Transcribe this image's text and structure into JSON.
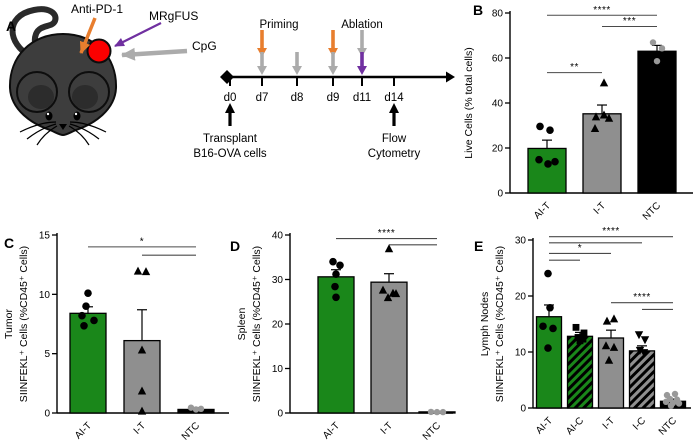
{
  "panels": {
    "a": {
      "label": "A"
    },
    "b": {
      "label": "B"
    },
    "c": {
      "label": "C"
    },
    "d": {
      "label": "D"
    },
    "e": {
      "label": "E"
    }
  },
  "panel_a": {
    "annotations": {
      "anti_pd1": "Anti-PD-1",
      "mrgfus": "MRgFUS",
      "cpg": "CpG"
    },
    "timeline": {
      "days": [
        "d0",
        "d7",
        "d8",
        "d9",
        "d11",
        "d14"
      ],
      "priming_label": "Priming",
      "ablation_label": "Ablation",
      "transplant_line1": "Transplant",
      "transplant_line2": "B16-OVA cells",
      "flow_line1": "Flow",
      "flow_line2": "Cytometry"
    }
  },
  "colors": {
    "bar_green": "#1a871a",
    "bar_gray": "#8f8f8f",
    "bar_black": "#000000",
    "point_black": "#000000",
    "point_gray": "#999999",
    "sig_line": "#4a4a4a",
    "orange_arrow": "#e87e2e",
    "purple_arrow": "#7030a0",
    "gray_arrow": "#ababab",
    "tumor_red": "#fb0000",
    "mouse_body": "#3d3d3d"
  },
  "chart_data": [
    {
      "panel": "B",
      "type": "bar",
      "title": "",
      "ylabel_lines": [
        "Live Cells (% total cells)"
      ],
      "ylim": [
        0,
        80
      ],
      "yticks": [
        0,
        20,
        40,
        60,
        80
      ],
      "categories": [
        "AI-T",
        "I-T",
        "NTC"
      ],
      "bars": [
        {
          "label": "AI-T",
          "value": 19.8,
          "error": 3.7,
          "color": "#1a871a",
          "hatch": false
        },
        {
          "label": "I-T",
          "value": 35.2,
          "error": 3.9,
          "color": "#8f8f8f",
          "hatch": false
        },
        {
          "label": "NTC",
          "value": 63.0,
          "error": 2.6,
          "color": "#000000",
          "hatch": false
        }
      ],
      "points": [
        {
          "category": "AI-T",
          "shape": "circle",
          "color": "#000000",
          "values": [
            29.6,
            27.9,
            14.8,
            13.9,
            12.9
          ]
        },
        {
          "category": "I-T",
          "shape": "triangle-up",
          "color": "#000000",
          "values": [
            48.9,
            34.6,
            33.8,
            33.2,
            28.6
          ]
        },
        {
          "category": "NTC",
          "shape": "circle",
          "color": "#999999",
          "values": [
            66.9,
            64.3,
            58.6
          ]
        }
      ],
      "significance": [
        {
          "from": "AI-T",
          "to": "NTC",
          "y": 79.0,
          "stars": "****"
        },
        {
          "from": "I-T",
          "to": "NTC",
          "y": 74.0,
          "stars": "***"
        },
        {
          "from": "AI-T",
          "to": "I-T",
          "y": 53.5,
          "stars": "**"
        }
      ]
    },
    {
      "panel": "C",
      "type": "bar",
      "title": "",
      "ylabel_lines": [
        "Tumor",
        "SIINFEKL⁺ Cells (%CD45⁺ Cells)"
      ],
      "ylim": [
        0,
        15
      ],
      "yticks": [
        0,
        5,
        10,
        15
      ],
      "categories": [
        "AI-T",
        "I-T",
        "NTC"
      ],
      "bars": [
        {
          "label": "AI-T",
          "value": 8.4,
          "error": 0.55,
          "color": "#1a871a",
          "hatch": false
        },
        {
          "label": "I-T",
          "value": 6.1,
          "error": 2.6,
          "color": "#8f8f8f",
          "hatch": false
        },
        {
          "label": "NTC",
          "value": 0.3,
          "error": 0.15,
          "color": "#000000",
          "hatch": false
        }
      ],
      "points": [
        {
          "category": "AI-T",
          "shape": "circle",
          "color": "#000000",
          "values": [
            10.1,
            9.0,
            8.2,
            7.8,
            7.35
          ]
        },
        {
          "category": "I-T",
          "shape": "triangle-up",
          "color": "#000000",
          "values": [
            11.95,
            11.9,
            5.3,
            1.85,
            0.15
          ]
        },
        {
          "category": "NTC",
          "shape": "circle",
          "color": "#999999",
          "values": [
            0.45,
            0.35,
            0.3
          ]
        }
      ],
      "significance": [
        {
          "from": "AI-T",
          "to": "NTC",
          "y": 14.0,
          "stars": "*"
        },
        {
          "from": "I-T",
          "to": "NTC",
          "y": 13.3,
          "stars": ""
        }
      ]
    },
    {
      "panel": "D",
      "type": "bar",
      "title": "",
      "ylabel_lines": [
        "Spleen",
        "SIINFEKL⁺ Cells (%CD45⁺ Cells)"
      ],
      "ylim": [
        0,
        40
      ],
      "yticks": [
        0,
        10,
        20,
        30,
        40
      ],
      "categories": [
        "AI-T",
        "I-T",
        "NTC"
      ],
      "bars": [
        {
          "label": "AI-T",
          "value": 30.6,
          "error": 1.6,
          "color": "#1a871a",
          "hatch": false
        },
        {
          "label": "I-T",
          "value": 29.4,
          "error": 1.9,
          "color": "#8f8f8f",
          "hatch": false
        },
        {
          "label": "NTC",
          "value": 0.25,
          "error": 0.12,
          "color": "#000000",
          "hatch": false
        }
      ],
      "points": [
        {
          "category": "AI-T",
          "shape": "circle",
          "color": "#000000",
          "values": [
            34.0,
            33.2,
            31.2,
            28.4,
            26.0
          ]
        },
        {
          "category": "I-T",
          "shape": "triangle-up",
          "color": "#000000",
          "values": [
            36.9,
            27.6,
            26.9,
            26.8,
            25.9
          ]
        },
        {
          "category": "NTC",
          "shape": "circle",
          "color": "#999999",
          "values": [
            0.25,
            0.2,
            0.2
          ]
        }
      ],
      "significance": [
        {
          "from": "AI-T",
          "to": "NTC",
          "y": 39.2,
          "stars": "****"
        },
        {
          "from": "I-T",
          "to": "NTC",
          "y": 37.8,
          "stars": ""
        }
      ]
    },
    {
      "panel": "E",
      "type": "bar",
      "title": "",
      "ylabel_lines": [
        "Lymph Nodes",
        "SIINFEKL⁺ Cells (%CD45⁺ Cells)"
      ],
      "ylim": [
        0,
        30
      ],
      "yticks": [
        0,
        10,
        20,
        30
      ],
      "categories": [
        "AI-T",
        "AI-C",
        "I-T",
        "I-C",
        "NTC"
      ],
      "bars": [
        {
          "label": "AI-T",
          "value": 16.3,
          "error": 2.1,
          "color": "#1a871a",
          "hatch": false
        },
        {
          "label": "AI-C",
          "value": 12.8,
          "error": 0.7,
          "color": "#1a871a",
          "hatch": true
        },
        {
          "label": "I-T",
          "value": 12.5,
          "error": 1.4,
          "color": "#8f8f8f",
          "hatch": false
        },
        {
          "label": "I-C",
          "value": 10.2,
          "error": 0.9,
          "color": "#8f8f8f",
          "hatch": true
        },
        {
          "label": "NTC",
          "value": 1.2,
          "error": 0.4,
          "color": "#000000",
          "hatch": false
        }
      ],
      "points": [
        {
          "category": "AI-T",
          "shape": "circle",
          "color": "#000000",
          "values": [
            24.0,
            17.9,
            14.6,
            14.2,
            10.7
          ]
        },
        {
          "category": "AI-C",
          "shape": "square",
          "color": "#000000",
          "values": [
            14.4,
            13.4,
            12.6,
            12.3,
            12.0
          ]
        },
        {
          "category": "I-T",
          "shape": "triangle-up",
          "color": "#000000",
          "values": [
            15.9,
            15.5,
            11.1,
            10.8,
            8.5
          ]
        },
        {
          "category": "I-C",
          "shape": "triangle-down",
          "color": "#000000",
          "values": [
            13.1,
            12.2,
            10.3,
            9.9
          ]
        },
        {
          "category": "NTC",
          "shape": "circle",
          "color": "#999999",
          "values": [
            2.5,
            2.3,
            1.6,
            1.5,
            1.1,
            0.9,
            0.8,
            0.4
          ]
        }
      ],
      "significance": [
        {
          "from": "AI-T",
          "to": "NTC",
          "y": 30.6,
          "stars": "****"
        },
        {
          "from": "AI-T",
          "to": "I-C",
          "y": 29.5,
          "stars": ""
        },
        {
          "from": "AI-T",
          "to": "I-T",
          "y": 27.6,
          "stars": "*"
        },
        {
          "from": "AI-T",
          "to": "AI-C",
          "y": 26.4,
          "stars": ""
        },
        {
          "from": "I-T",
          "to": "NTC",
          "y": 18.8,
          "stars": "****"
        },
        {
          "from": "I-C",
          "to": "NTC",
          "y": 17.6,
          "stars": ""
        }
      ]
    }
  ]
}
